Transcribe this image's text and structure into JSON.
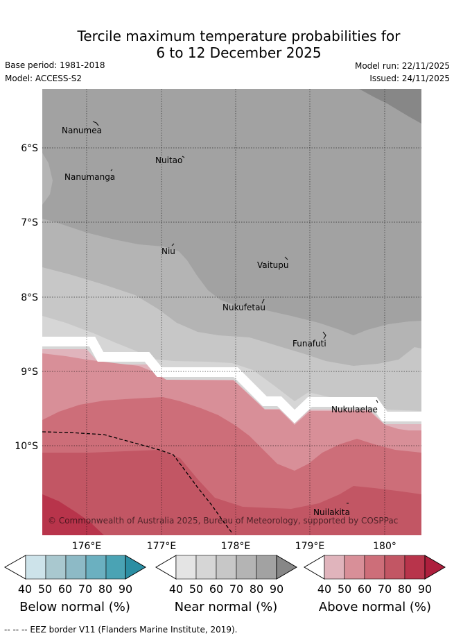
{
  "title": {
    "line1": "Tercile maximum temperature probabilities for",
    "line2": "6 to 12 December 2025"
  },
  "meta": {
    "base_period": "Base period: 1981-2018",
    "model": "Model: ACCESS-S2",
    "model_run": "Model run: 22/11/2025",
    "issued": "Issued: 24/11/2025"
  },
  "map": {
    "lat_ticks": [
      "6°S",
      "7°S",
      "8°S",
      "9°S",
      "10°S"
    ],
    "lon_ticks": [
      "176°E",
      "177°E",
      "178°E",
      "179°E",
      "180°"
    ],
    "places": [
      {
        "name": "Nanumea"
      },
      {
        "name": "Nuitao"
      },
      {
        "name": "Nanumanga"
      },
      {
        "name": "Niu"
      },
      {
        "name": "Vaitupu"
      },
      {
        "name": "Nukufetau"
      },
      {
        "name": "Funafuti"
      },
      {
        "name": "Nukulaelae"
      },
      {
        "name": "Nuilakita"
      }
    ],
    "copyright": "© Commonwealth of Australia 2025, Bureau of Meteorology, supported by COSPPac"
  },
  "colors": {
    "below": [
      "#cde3ea",
      "#a9c8cf",
      "#8dbac6",
      "#6bb0c0",
      "#4aa3b4",
      "#2b8ea3"
    ],
    "near": [
      "#e4e4e4",
      "#d6d6d6",
      "#c7c7c7",
      "#b4b4b4",
      "#a2a2a2",
      "#878787"
    ],
    "above": [
      "#e0b4bc",
      "#d88f98",
      "#cd6e79",
      "#c25664",
      "#b8344b",
      "#ad1f3d"
    ]
  },
  "legends": [
    {
      "label": "Below normal (%)",
      "ticks": [
        "40",
        "50",
        "60",
        "70",
        "80",
        "90"
      ]
    },
    {
      "label": "Near normal (%)",
      "ticks": [
        "40",
        "50",
        "60",
        "70",
        "80",
        "90"
      ]
    },
    {
      "label": "Above normal (%)",
      "ticks": [
        "40",
        "50",
        "60",
        "70",
        "80",
        "90"
      ]
    }
  ],
  "footer": "-- -- -- EEZ border V11 (Flanders Marine Institute, 2019)."
}
